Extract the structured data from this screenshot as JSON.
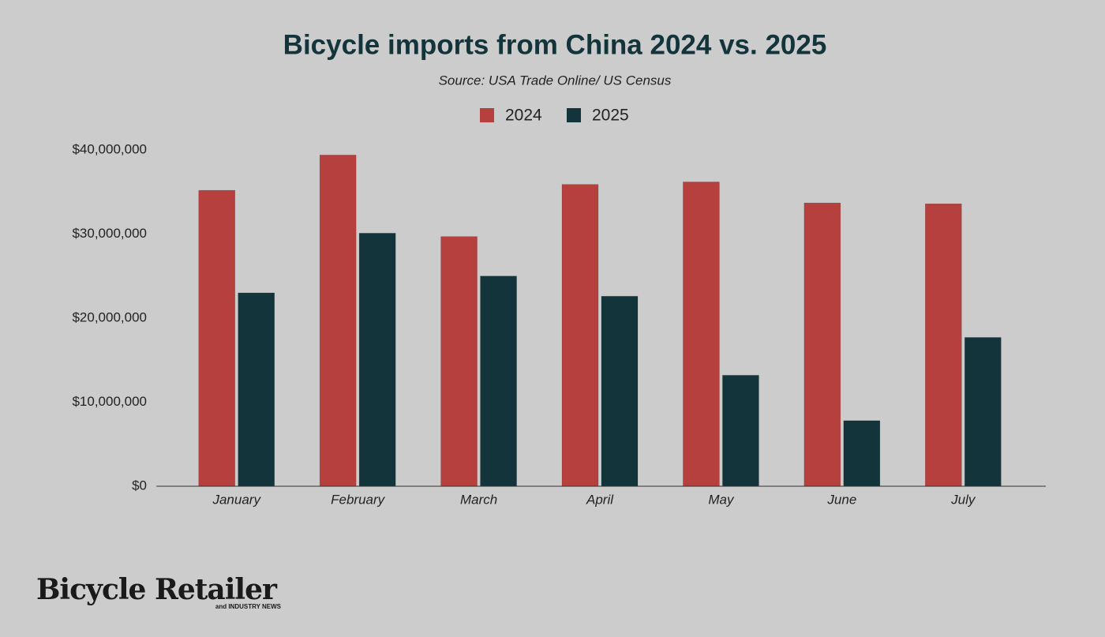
{
  "chart_data": {
    "type": "bar",
    "title": "Bicycle imports from China 2024 vs. 2025",
    "subtitle": "Source: USA Trade Online/ US Census",
    "categories": [
      "January",
      "February",
      "March",
      "April",
      "May",
      "June",
      "July"
    ],
    "series": [
      {
        "name": "2024",
        "color": "#b5403d",
        "values": [
          35200000,
          39400000,
          29700000,
          35900000,
          36200000,
          33700000,
          33600000
        ]
      },
      {
        "name": "2025",
        "color": "#12343a",
        "values": [
          23000000,
          30100000,
          25000000,
          22600000,
          13200000,
          7800000,
          17700000
        ]
      }
    ],
    "ylim": [
      0,
      40000000
    ],
    "yticks": [
      {
        "value": 0,
        "label": "$0"
      },
      {
        "value": 10000000,
        "label": "$10,000,000"
      },
      {
        "value": 20000000,
        "label": "$20,000,000"
      },
      {
        "value": 30000000,
        "label": "$30,000,000"
      },
      {
        "value": 40000000,
        "label": "$40,000,000"
      }
    ],
    "grid": false,
    "legend": "top"
  },
  "logo": {
    "name": "Bicycle Retailer",
    "tagline": "and INDUSTRY NEWS"
  }
}
